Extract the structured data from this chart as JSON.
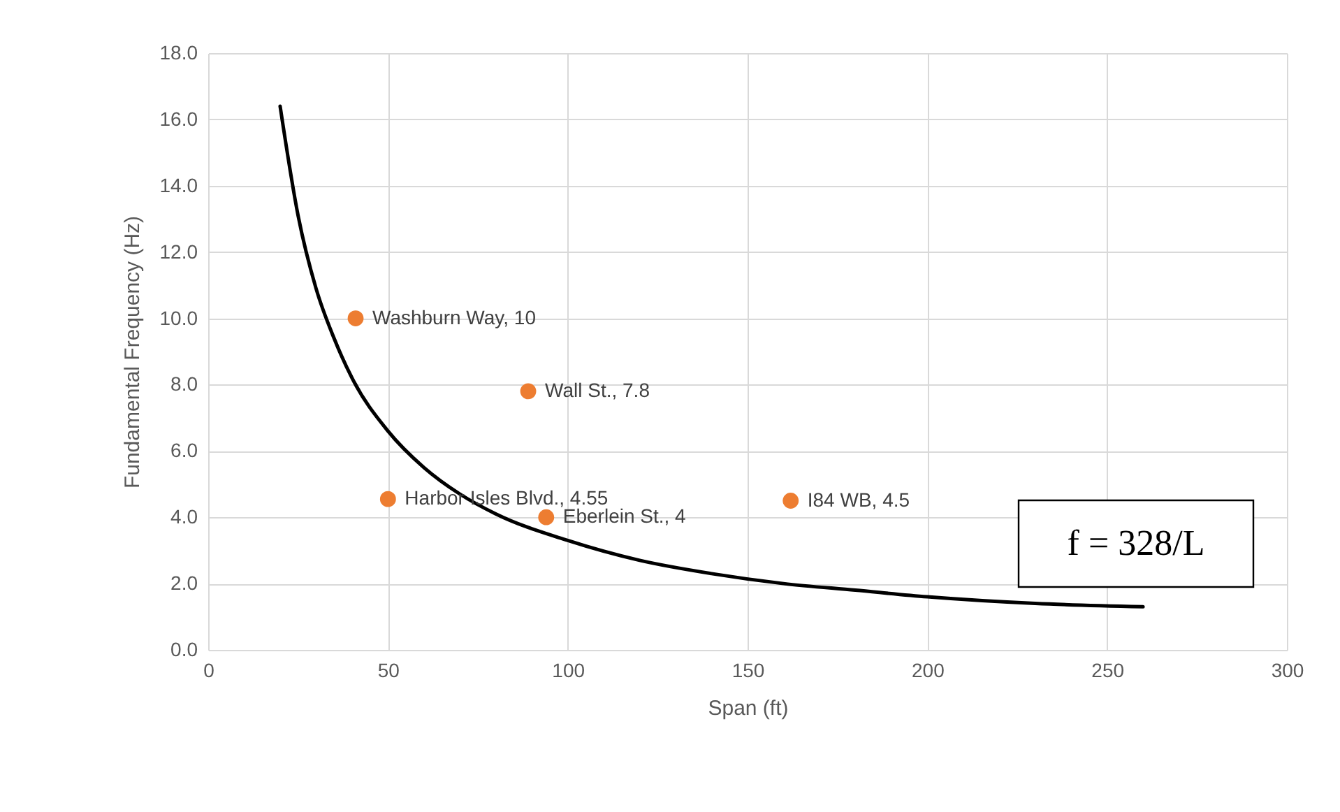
{
  "chart_data": {
    "type": "scatter",
    "xlabel": "Span (ft)",
    "ylabel": "Fundamental Frequency (Hz)",
    "xlim": [
      0,
      300
    ],
    "xticks": [
      0,
      50,
      100,
      150,
      200,
      250,
      300
    ],
    "ylim": [
      0,
      18
    ],
    "yticks": [
      {
        "value": 0,
        "label": "0.0"
      },
      {
        "value": 2,
        "label": "2.0"
      },
      {
        "value": 4,
        "label": "4.0"
      },
      {
        "value": 6,
        "label": "6.0"
      },
      {
        "value": 8,
        "label": "8.0"
      },
      {
        "value": 10,
        "label": "10.0"
      },
      {
        "value": 12,
        "label": "12.0"
      },
      {
        "value": 14,
        "label": "14.0"
      },
      {
        "value": 16,
        "label": "16.0"
      },
      {
        "value": 18,
        "label": "18.0"
      }
    ],
    "grid": true,
    "marker": "circle",
    "series": [
      {
        "type": "line",
        "color": "#000000",
        "line_style": "solid",
        "marker": "none",
        "x": [
          20,
          25,
          30,
          35,
          40,
          50,
          60,
          70,
          80,
          100,
          120,
          140,
          160,
          180,
          200,
          230,
          260
        ],
        "values": [
          16.4,
          13.1,
          10.9,
          9.4,
          8.2,
          6.6,
          5.5,
          4.7,
          4.1,
          3.3,
          2.7,
          2.3,
          2.0,
          1.8,
          1.6,
          1.4,
          1.3
        ]
      },
      {
        "color": "#ed7d31",
        "x": [
          41,
          89,
          50,
          94,
          162
        ],
        "values": [
          10,
          7.8,
          4.55,
          4,
          4.5
        ]
      }
    ],
    "annotations": [
      {
        "text": "Washburn Way, 10",
        "x": 41,
        "y": 10
      },
      {
        "text": "Wall St., 7.8",
        "x": 89,
        "y": 7.8
      },
      {
        "text": "Harbor Isles Blvd., 4.55",
        "x": 50,
        "y": 4.55
      },
      {
        "text": "Eberlein St., 4",
        "x": 94,
        "y": 4
      },
      {
        "text": "I84 WB, 4.5",
        "x": 162,
        "y": 4.5
      },
      "f = 328/L"
    ]
  }
}
